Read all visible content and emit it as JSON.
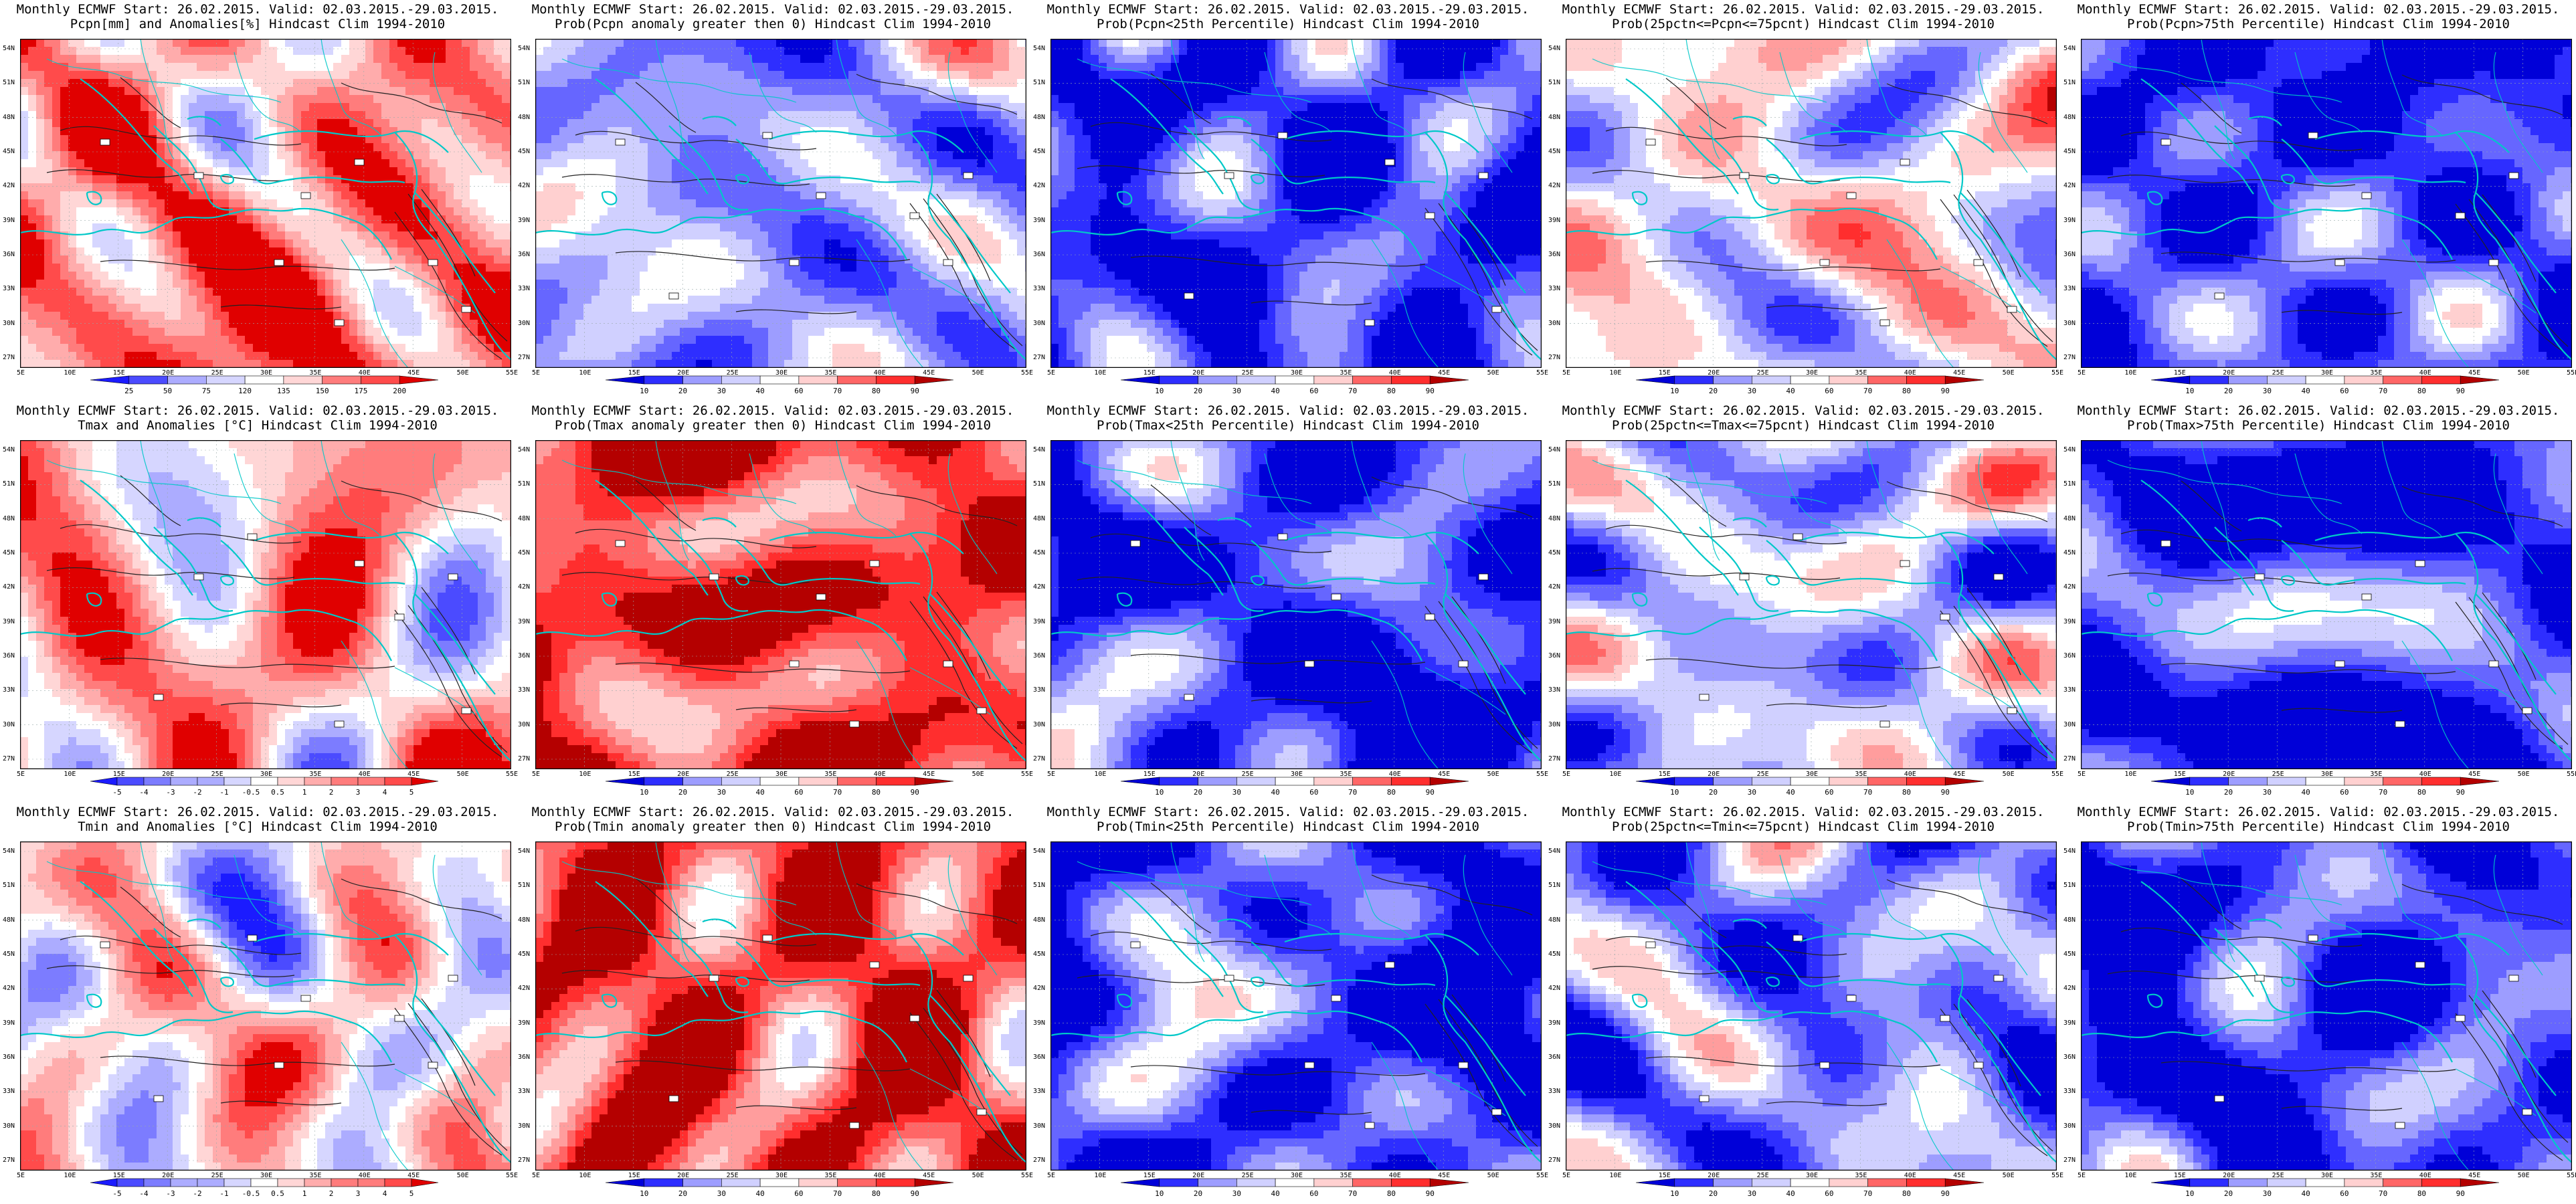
{
  "colors": {
    "coast": "#00c8c8",
    "contour": "#222222",
    "precip_anom": [
      "#1b1bff",
      "#4b4bff",
      "#7c7cff",
      "#acacff",
      "#d6d6ff",
      "#ffffff",
      "#ffd6d6",
      "#ffacac",
      "#ff7c7c",
      "#ff4b4b",
      "#e00000"
    ],
    "prob": [
      "#0000d8",
      "#2e2eff",
      "#6666ff",
      "#9d9dff",
      "#d0d0ff",
      "#ffffff",
      "#ffd0d0",
      "#ff9d9d",
      "#ff6666",
      "#ff2e2e",
      "#b40000"
    ]
  },
  "axes": {
    "lon_labels": [
      "5E",
      "10E",
      "15E",
      "20E",
      "25E",
      "30E",
      "35E",
      "40E",
      "45E",
      "50E",
      "55E"
    ],
    "lat_labels": [
      "27N",
      "30N",
      "33N",
      "36N",
      "39N",
      "42N",
      "45N",
      "48N",
      "51N",
      "54N"
    ]
  },
  "panels": [
    {
      "line1": "Monthly ECMWF Start: 26.02.2015. Valid: 02.03.2015.-29.03.2015.",
      "line2": "Pcpn[mm] and Anomalies[%] Hindcast Clim 1994-2010",
      "scheme": "precip",
      "seed": 1,
      "cbar": [
        "25",
        "50",
        "75",
        "120",
        "135",
        "150",
        "175",
        "200"
      ]
    },
    {
      "line1": "Monthly ECMWF Start: 26.02.2015. Valid: 02.03.2015.-29.03.2015.",
      "line2": "Prob(Pcpn anomaly greater then 0) Hindcast Clim 1994-2010",
      "scheme": "prob",
      "seed": 2,
      "cbar": [
        "10",
        "20",
        "30",
        "40",
        "60",
        "70",
        "80",
        "90"
      ]
    },
    {
      "line1": "Monthly ECMWF Start: 26.02.2015. Valid: 02.03.2015.-29.03.2015.",
      "line2": "Prob(Pcpn<25th Percentile) Hindcast Clim 1994-2010",
      "scheme": "prob",
      "seed": 3,
      "cbar": [
        "10",
        "20",
        "30",
        "40",
        "60",
        "70",
        "80",
        "90"
      ]
    },
    {
      "line1": "Monthly ECMWF Start: 26.02.2015. Valid: 02.03.2015.-29.03.2015.",
      "line2": "Prob(25pctn<=Pcpn<=75pcnt) Hindcast Clim 1994-2010",
      "scheme": "prob",
      "seed": 4,
      "cbar": [
        "10",
        "20",
        "30",
        "40",
        "60",
        "70",
        "80",
        "90"
      ]
    },
    {
      "line1": "Monthly ECMWF Start: 26.02.2015. Valid: 02.03.2015.-29.03.2015.",
      "line2": "Prob(Pcpn>75th Percentile) Hindcast Clim 1994-2010",
      "scheme": "prob",
      "seed": 5,
      "cbar": [
        "10",
        "20",
        "30",
        "40",
        "60",
        "70",
        "80",
        "90"
      ]
    },
    {
      "line1": "Monthly ECMWF Start: 26.02.2015. Valid: 02.03.2015.-29.03.2015.",
      "line2": "Tmax and Anomalies [°C] Hindcast Clim 1994-2010",
      "scheme": "temp",
      "seed": 6,
      "cbar": [
        "-5",
        "-4",
        "-3",
        "-2",
        "-1",
        "-0.5",
        "0.5",
        "1",
        "2",
        "3",
        "4",
        "5"
      ]
    },
    {
      "line1": "Monthly ECMWF Start: 26.02.2015. Valid: 02.03.2015.-29.03.2015.",
      "line2": "Prob(Tmax anomaly greater then 0) Hindcast Clim 1994-2010",
      "scheme": "prob",
      "seed": 7,
      "cbar": [
        "10",
        "20",
        "30",
        "40",
        "60",
        "70",
        "80",
        "90"
      ]
    },
    {
      "line1": "Monthly ECMWF Start: 26.02.2015. Valid: 02.03.2015.-29.03.2015.",
      "line2": "Prob(Tmax<25th Percentile) Hindcast Clim 1994-2010",
      "scheme": "prob",
      "seed": 8,
      "cbar": [
        "10",
        "20",
        "30",
        "40",
        "60",
        "70",
        "80",
        "90"
      ]
    },
    {
      "line1": "Monthly ECMWF Start: 26.02.2015. Valid: 02.03.2015.-29.03.2015.",
      "line2": "Prob(25pctn<=Tmax<=75pcnt) Hindcast Clim 1994-2010",
      "scheme": "prob",
      "seed": 9,
      "cbar": [
        "10",
        "20",
        "30",
        "40",
        "60",
        "70",
        "80",
        "90"
      ]
    },
    {
      "line1": "Monthly ECMWF Start: 26.02.2015. Valid: 02.03.2015.-29.03.2015.",
      "line2": "Prob(Tmax>75th Percentile) Hindcast Clim 1994-2010",
      "scheme": "prob",
      "seed": 10,
      "cbar": [
        "10",
        "20",
        "30",
        "40",
        "60",
        "70",
        "80",
        "90"
      ]
    },
    {
      "line1": "Monthly ECMWF Start: 26.02.2015. Valid: 02.03.2015.-29.03.2015.",
      "line2": "Tmin and Anomalies [°C] Hindcast Clim 1994-2010",
      "scheme": "temp",
      "seed": 11,
      "cbar": [
        "-5",
        "-4",
        "-3",
        "-2",
        "-1",
        "-0.5",
        "0.5",
        "1",
        "2",
        "3",
        "4",
        "5"
      ]
    },
    {
      "line1": "Monthly ECMWF Start: 26.02.2015. Valid: 02.03.2015.-29.03.2015.",
      "line2": "Prob(Tmin anomaly greater then 0) Hindcast Clim 1994-2010",
      "scheme": "prob",
      "seed": 12,
      "cbar": [
        "10",
        "20",
        "30",
        "40",
        "60",
        "70",
        "80",
        "90"
      ]
    },
    {
      "line1": "Monthly ECMWF Start: 26.02.2015. Valid: 02.03.2015.-29.03.2015.",
      "line2": "Prob(Tmin<25th Percentile) Hindcast Clim 1994-2010",
      "scheme": "prob",
      "seed": 13,
      "cbar": [
        "10",
        "20",
        "30",
        "40",
        "60",
        "70",
        "80",
        "90"
      ]
    },
    {
      "line1": "Monthly ECMWF Start: 26.02.2015. Valid: 02.03.2015.-29.03.2015.",
      "line2": "Prob(25pctn<=Tmin<=75pcnt) Hindcast Clim 1994-2010",
      "scheme": "prob",
      "seed": 14,
      "cbar": [
        "10",
        "20",
        "30",
        "40",
        "60",
        "70",
        "80",
        "90"
      ]
    },
    {
      "line1": "Monthly ECMWF Start: 26.02.2015. Valid: 02.03.2015.-29.03.2015.",
      "line2": "Prob(Tmin>75th Percentile) Hindcast Clim 1994-2010",
      "scheme": "prob",
      "seed": 15,
      "cbar": [
        "10",
        "20",
        "30",
        "40",
        "60",
        "70",
        "80",
        "90"
      ]
    }
  ]
}
